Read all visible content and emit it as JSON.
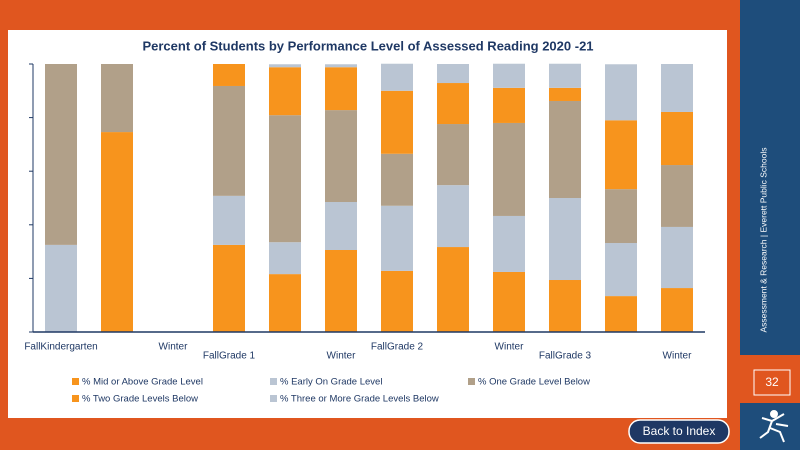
{
  "chart_data": {
    "type": "stacked_bar",
    "title": "Percent of Students by Performance Level of Assessed Reading 2020 -21",
    "categories": [
      "FallKindergarten",
      null,
      "Winter",
      "FallGrade 1",
      null,
      "Winter",
      "FallGrade 2",
      null,
      "Winter",
      "FallGrade 3",
      null,
      "Winter"
    ],
    "series": [
      {
        "name": "% Mid or Above Grade Level",
        "color": "#f7941d",
        "values": [
          0,
          74.6,
          null,
          32.5,
          21.6,
          30.6,
          22.8,
          31.7,
          22.4,
          19.4,
          13.4,
          16.4
        ]
      },
      {
        "name": "% Early On Grade Level",
        "color": "#bac5d3",
        "values": [
          32.5,
          0,
          null,
          18.3,
          11.9,
          17.9,
          24.3,
          23.1,
          20.9,
          30.6,
          19.8,
          22.8
        ]
      },
      {
        "name": "% One Grade Level Below",
        "color": "#b1a089",
        "values": [
          67.5,
          25.4,
          null,
          41,
          47.4,
          34.3,
          19.4,
          22.8,
          34.7,
          36.2,
          20.1,
          23.1
        ]
      },
      {
        "name": "% Two Grade Levels Below",
        "color": "#f7941d",
        "values": [
          0,
          0,
          null,
          8.2,
          17.9,
          16,
          23.5,
          15.3,
          13.1,
          4.9,
          25.7,
          19.8
        ]
      },
      {
        "name": "% Three or More Grade Levels Below",
        "color": "#bac5d3",
        "values": [
          0,
          0,
          null,
          0,
          1.1,
          1.1,
          10.1,
          7.1,
          9,
          9,
          20.9,
          17.9
        ]
      }
    ],
    "ylim": [
      0,
      100
    ],
    "yticks": [
      0,
      20,
      40,
      60,
      80,
      100
    ],
    "grid": false
  },
  "sidebar": {
    "caption": "Assessment & Research | Everett Public Schools",
    "page_number": "32"
  },
  "button": {
    "label": "Back to Index"
  }
}
